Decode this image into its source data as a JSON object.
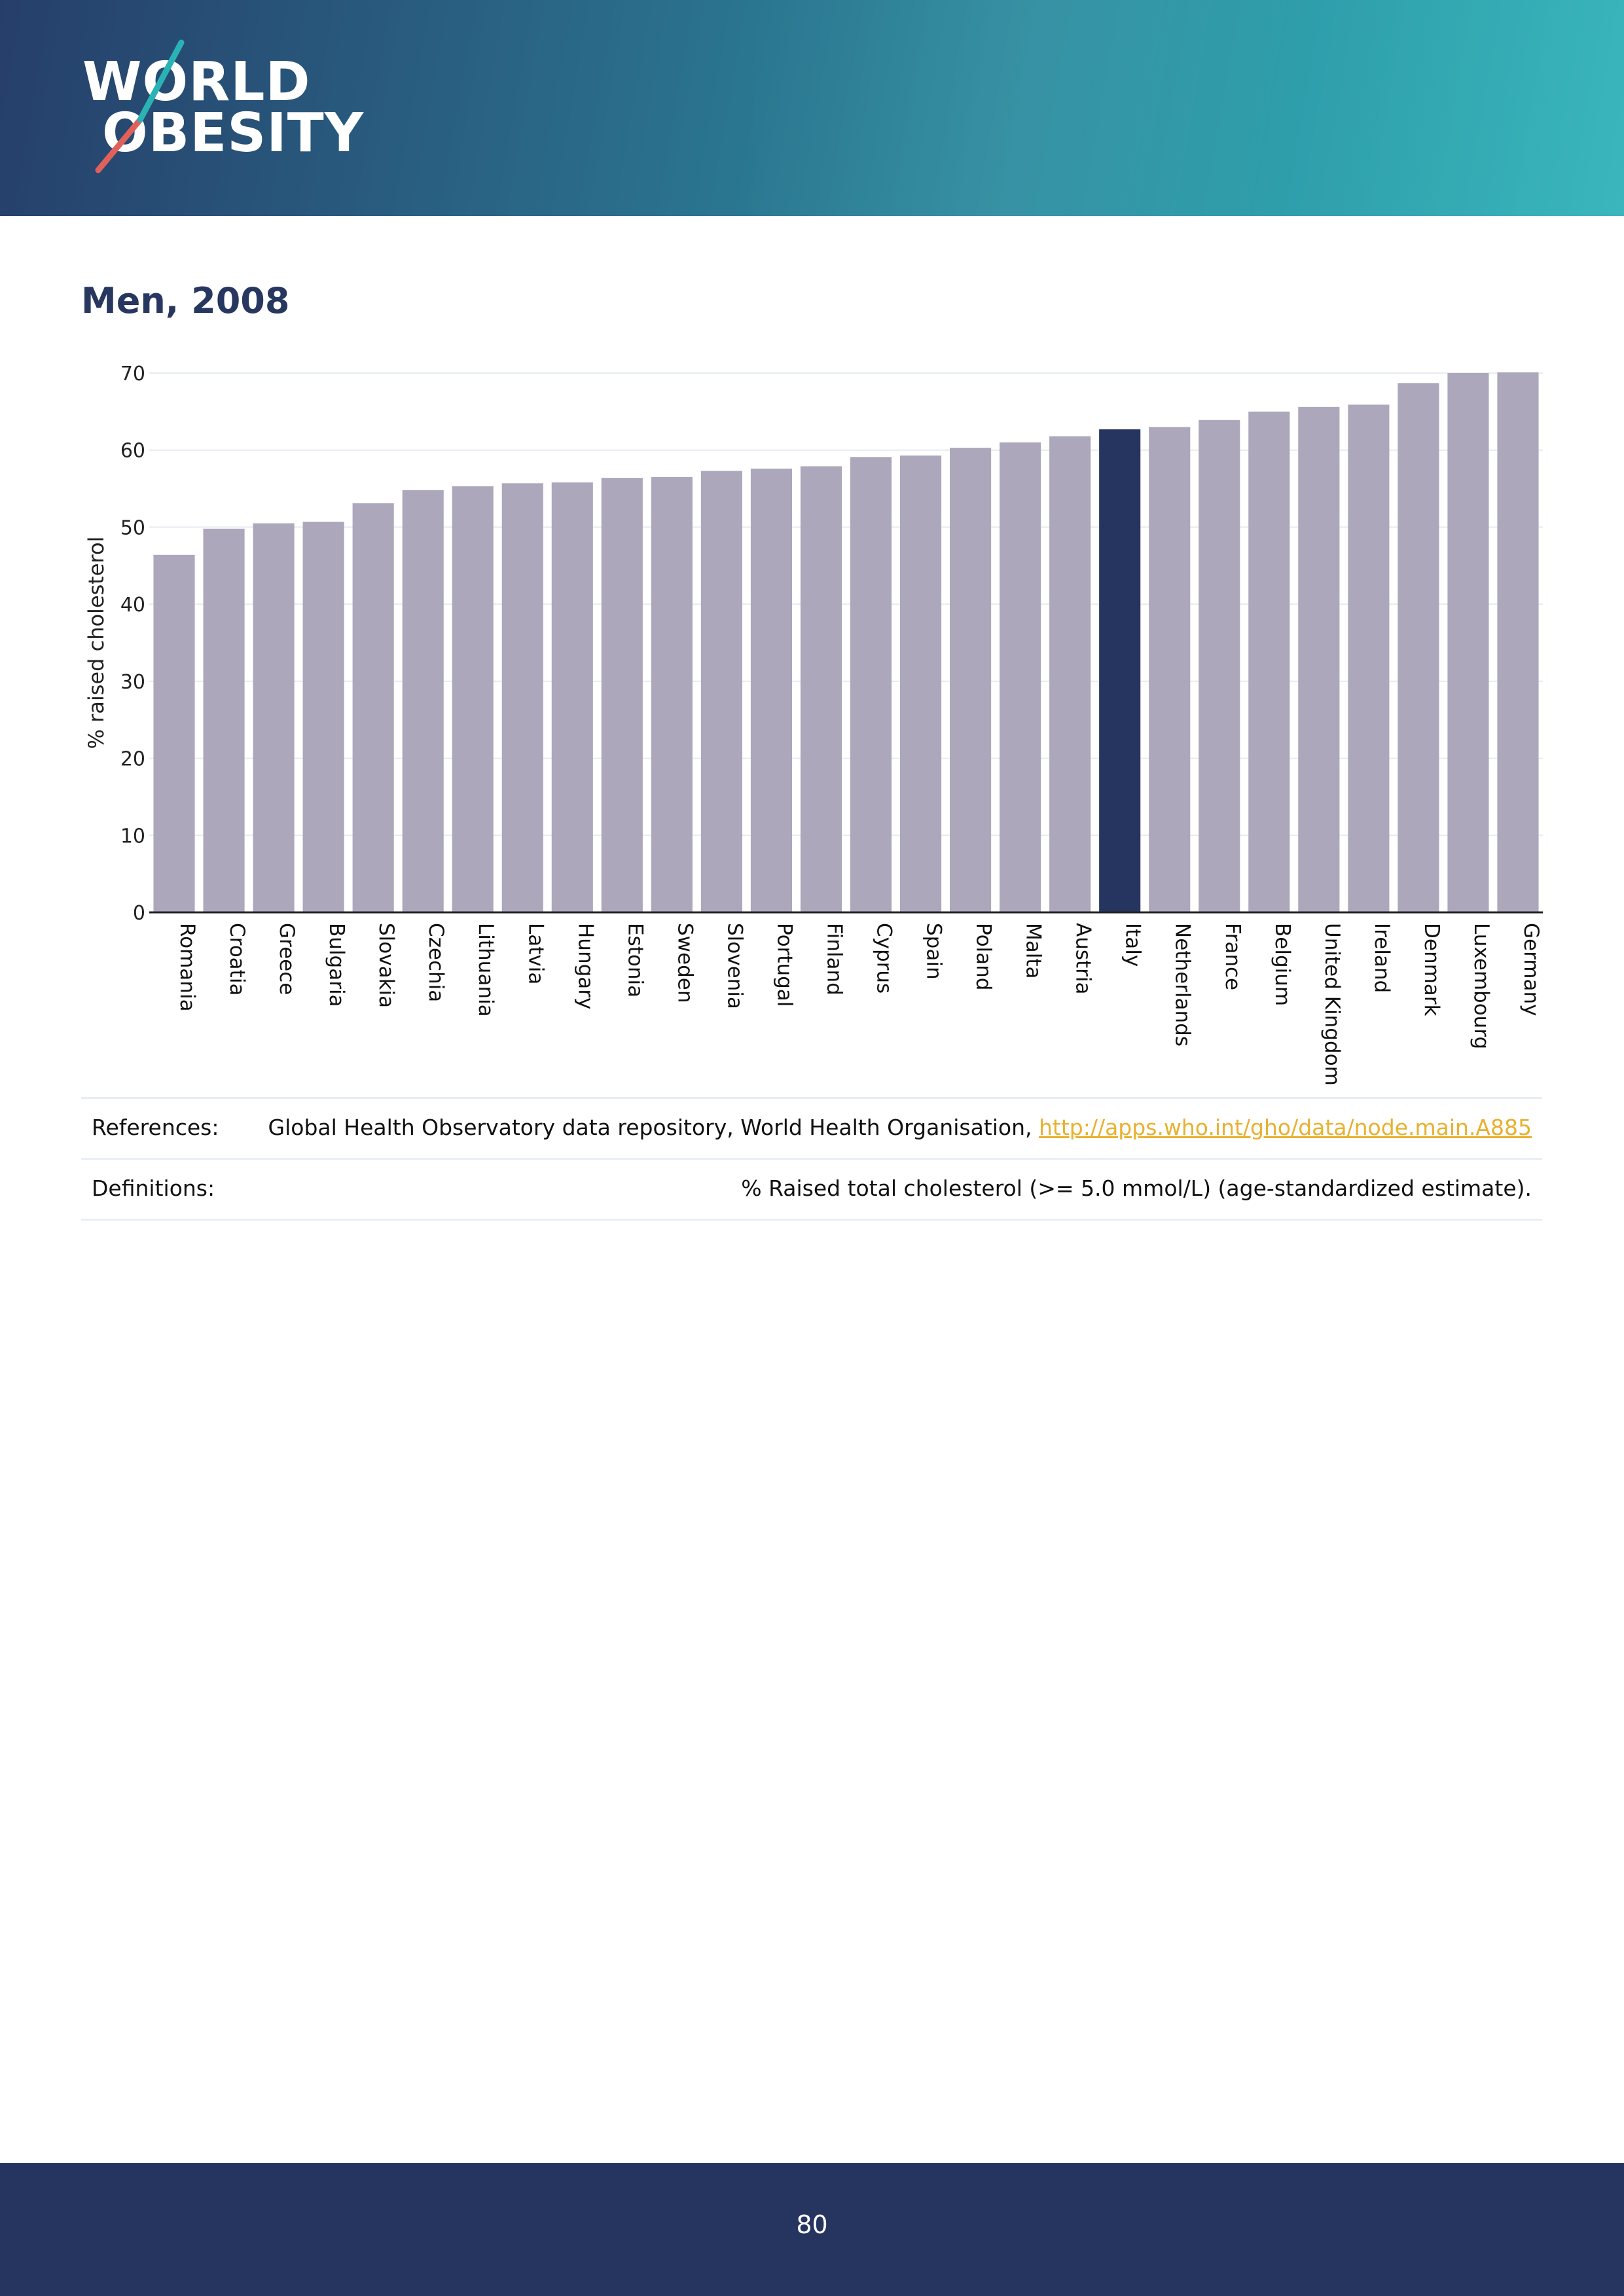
{
  "header": {
    "logo_line1": "WORLD",
    "logo_line2": "OBESITY",
    "logo_colors": {
      "teal": "#2ab3b5",
      "coral": "#e0605a"
    }
  },
  "chart_data": {
    "type": "bar",
    "title": "Men, 2008",
    "ylabel": "% raised cholesterol",
    "xlabel": "",
    "ylim": [
      0,
      70
    ],
    "yticks": [
      0,
      10,
      20,
      30,
      40,
      50,
      60,
      70
    ],
    "grid": true,
    "categories": [
      "Romania",
      "Croatia",
      "Greece",
      "Bulgaria",
      "Slovakia",
      "Czechia",
      "Lithuania",
      "Latvia",
      "Hungary",
      "Estonia",
      "Sweden",
      "Slovenia",
      "Portugal",
      "Finland",
      "Cyprus",
      "Spain",
      "Poland",
      "Malta",
      "Austria",
      "Italy",
      "Netherlands",
      "France",
      "Belgium",
      "United Kingdom",
      "Ireland",
      "Denmark",
      "Luxembourg",
      "Germany"
    ],
    "values": [
      46.4,
      49.8,
      50.5,
      50.7,
      53.1,
      54.8,
      55.3,
      55.7,
      55.8,
      56.4,
      56.5,
      57.3,
      57.6,
      57.9,
      59.1,
      59.3,
      60.3,
      61.0,
      61.8,
      62.7,
      63.0,
      63.9,
      65.0,
      65.6,
      65.9,
      68.7,
      70.0,
      70.1
    ],
    "highlight": "Italy",
    "colors": {
      "bar": "#aca7bb",
      "highlight": "#26355f",
      "grid": "#e6ecf0",
      "axis": "#222222"
    }
  },
  "info": {
    "references_label": "References:",
    "references_text": "Global Health Observatory data repository, World Health Organisation, ",
    "references_link": "http://apps.who.int/gho/data/node.main.A885",
    "definitions_label": "Definitions:",
    "definitions_text": "% Raised total cholesterol (>= 5.0 mmol/L) (age-standardized estimate)."
  },
  "footer": {
    "page_number": "80"
  }
}
